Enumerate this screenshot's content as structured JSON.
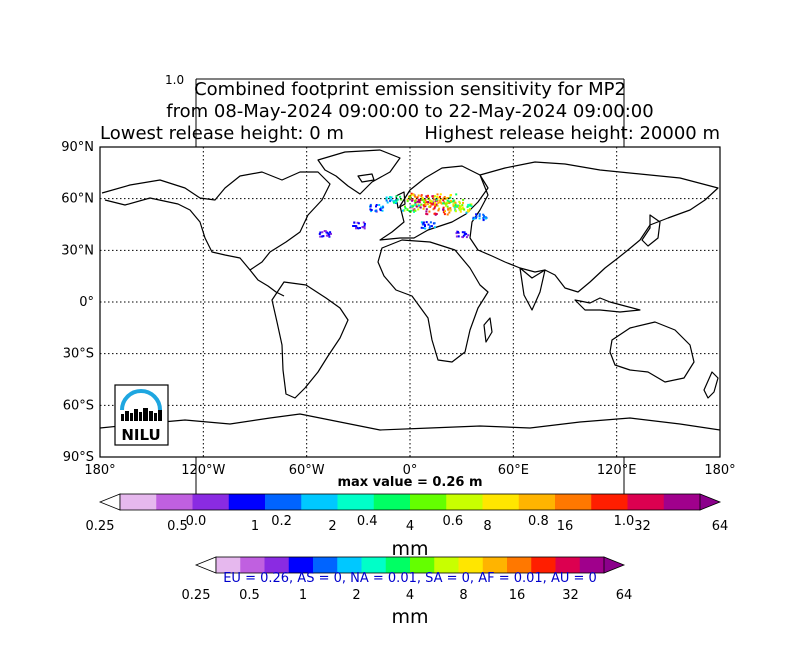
{
  "figure": {
    "title_lines": [
      "Combined footprint emission sensitivity for MP2",
      "from 08-May-2024 09:00:00 to 22-May-2024 09:00:00"
    ],
    "release_low": "Lowest release height: 0 m",
    "release_high": "Highest release height: 20000 m",
    "stray_tick": "1.0",
    "max_value": "max value = 0.26 m",
    "region_summary": "EU = 0.26,  AS = 0,  NA = 0.01,  SA = 0,  AF = 0.01,  AU = 0",
    "logo_text": "NILU"
  },
  "colors": {
    "region_text": "#0000cc",
    "gridline": "#000000"
  },
  "chart_data": {
    "type": "heatmap",
    "map": {
      "x_ticks": [
        "180°",
        "120°W",
        "60°W",
        "0°",
        "60°E",
        "120°E",
        "180°"
      ],
      "y_ticks": [
        "90°N",
        "60°N",
        "30°N",
        "0°",
        "30°S",
        "60°S",
        "90°S"
      ],
      "lon_range": [
        -180,
        180
      ],
      "lat_range": [
        -90,
        90
      ],
      "grid": true
    },
    "colorbars": [
      {
        "ticks": [
          "0.25",
          "0.5",
          "1",
          "2",
          "4",
          "8",
          "16",
          "32",
          "64"
        ],
        "unit": "mm",
        "overlay_ticks": [
          "0.0",
          "0.2",
          "0.4",
          "0.6",
          "0.8",
          "1.0"
        ],
        "colors": [
          "#ffffff",
          "#e6b8ee",
          "#c060e0",
          "#8a2be2",
          "#0000ff",
          "#0064ff",
          "#00c8ff",
          "#00ffc8",
          "#00ff64",
          "#64ff00",
          "#c8ff00",
          "#ffe600",
          "#ffb400",
          "#ff7800",
          "#ff1e00",
          "#dc0050",
          "#a0008c",
          "#8b008b"
        ]
      },
      {
        "ticks": [
          "0.25",
          "0.5",
          "1",
          "2",
          "4",
          "8",
          "16",
          "32",
          "64"
        ],
        "unit": "mm",
        "colors": [
          "#ffffff",
          "#e6b8ee",
          "#c060e0",
          "#8a2be2",
          "#0000ff",
          "#0064ff",
          "#00c8ff",
          "#00ffc8",
          "#00ff64",
          "#64ff00",
          "#c8ff00",
          "#ffe600",
          "#ffb400",
          "#ff7800",
          "#ff1e00",
          "#dc0050",
          "#a0008c",
          "#8b008b"
        ]
      }
    ],
    "plume_points": [
      {
        "lon": 10,
        "lat": 58,
        "v": 0.26
      },
      {
        "lon": 15,
        "lat": 55,
        "v": 0.2
      },
      {
        "lon": 5,
        "lat": 60,
        "v": 0.15
      },
      {
        "lon": 20,
        "lat": 60,
        "v": 0.12
      },
      {
        "lon": 25,
        "lat": 57,
        "v": 0.1
      },
      {
        "lon": 30,
        "lat": 55,
        "v": 0.08
      },
      {
        "lon": 0,
        "lat": 55,
        "v": 0.06
      },
      {
        "lon": -10,
        "lat": 60,
        "v": 0.04
      },
      {
        "lon": -20,
        "lat": 55,
        "v": 0.02
      },
      {
        "lon": -30,
        "lat": 45,
        "v": 0.01
      },
      {
        "lon": -50,
        "lat": 40,
        "v": 0.01
      },
      {
        "lon": 30,
        "lat": 40,
        "v": 0.01
      },
      {
        "lon": 40,
        "lat": 50,
        "v": 0.02
      },
      {
        "lon": 10,
        "lat": 45,
        "v": 0.02
      }
    ]
  }
}
